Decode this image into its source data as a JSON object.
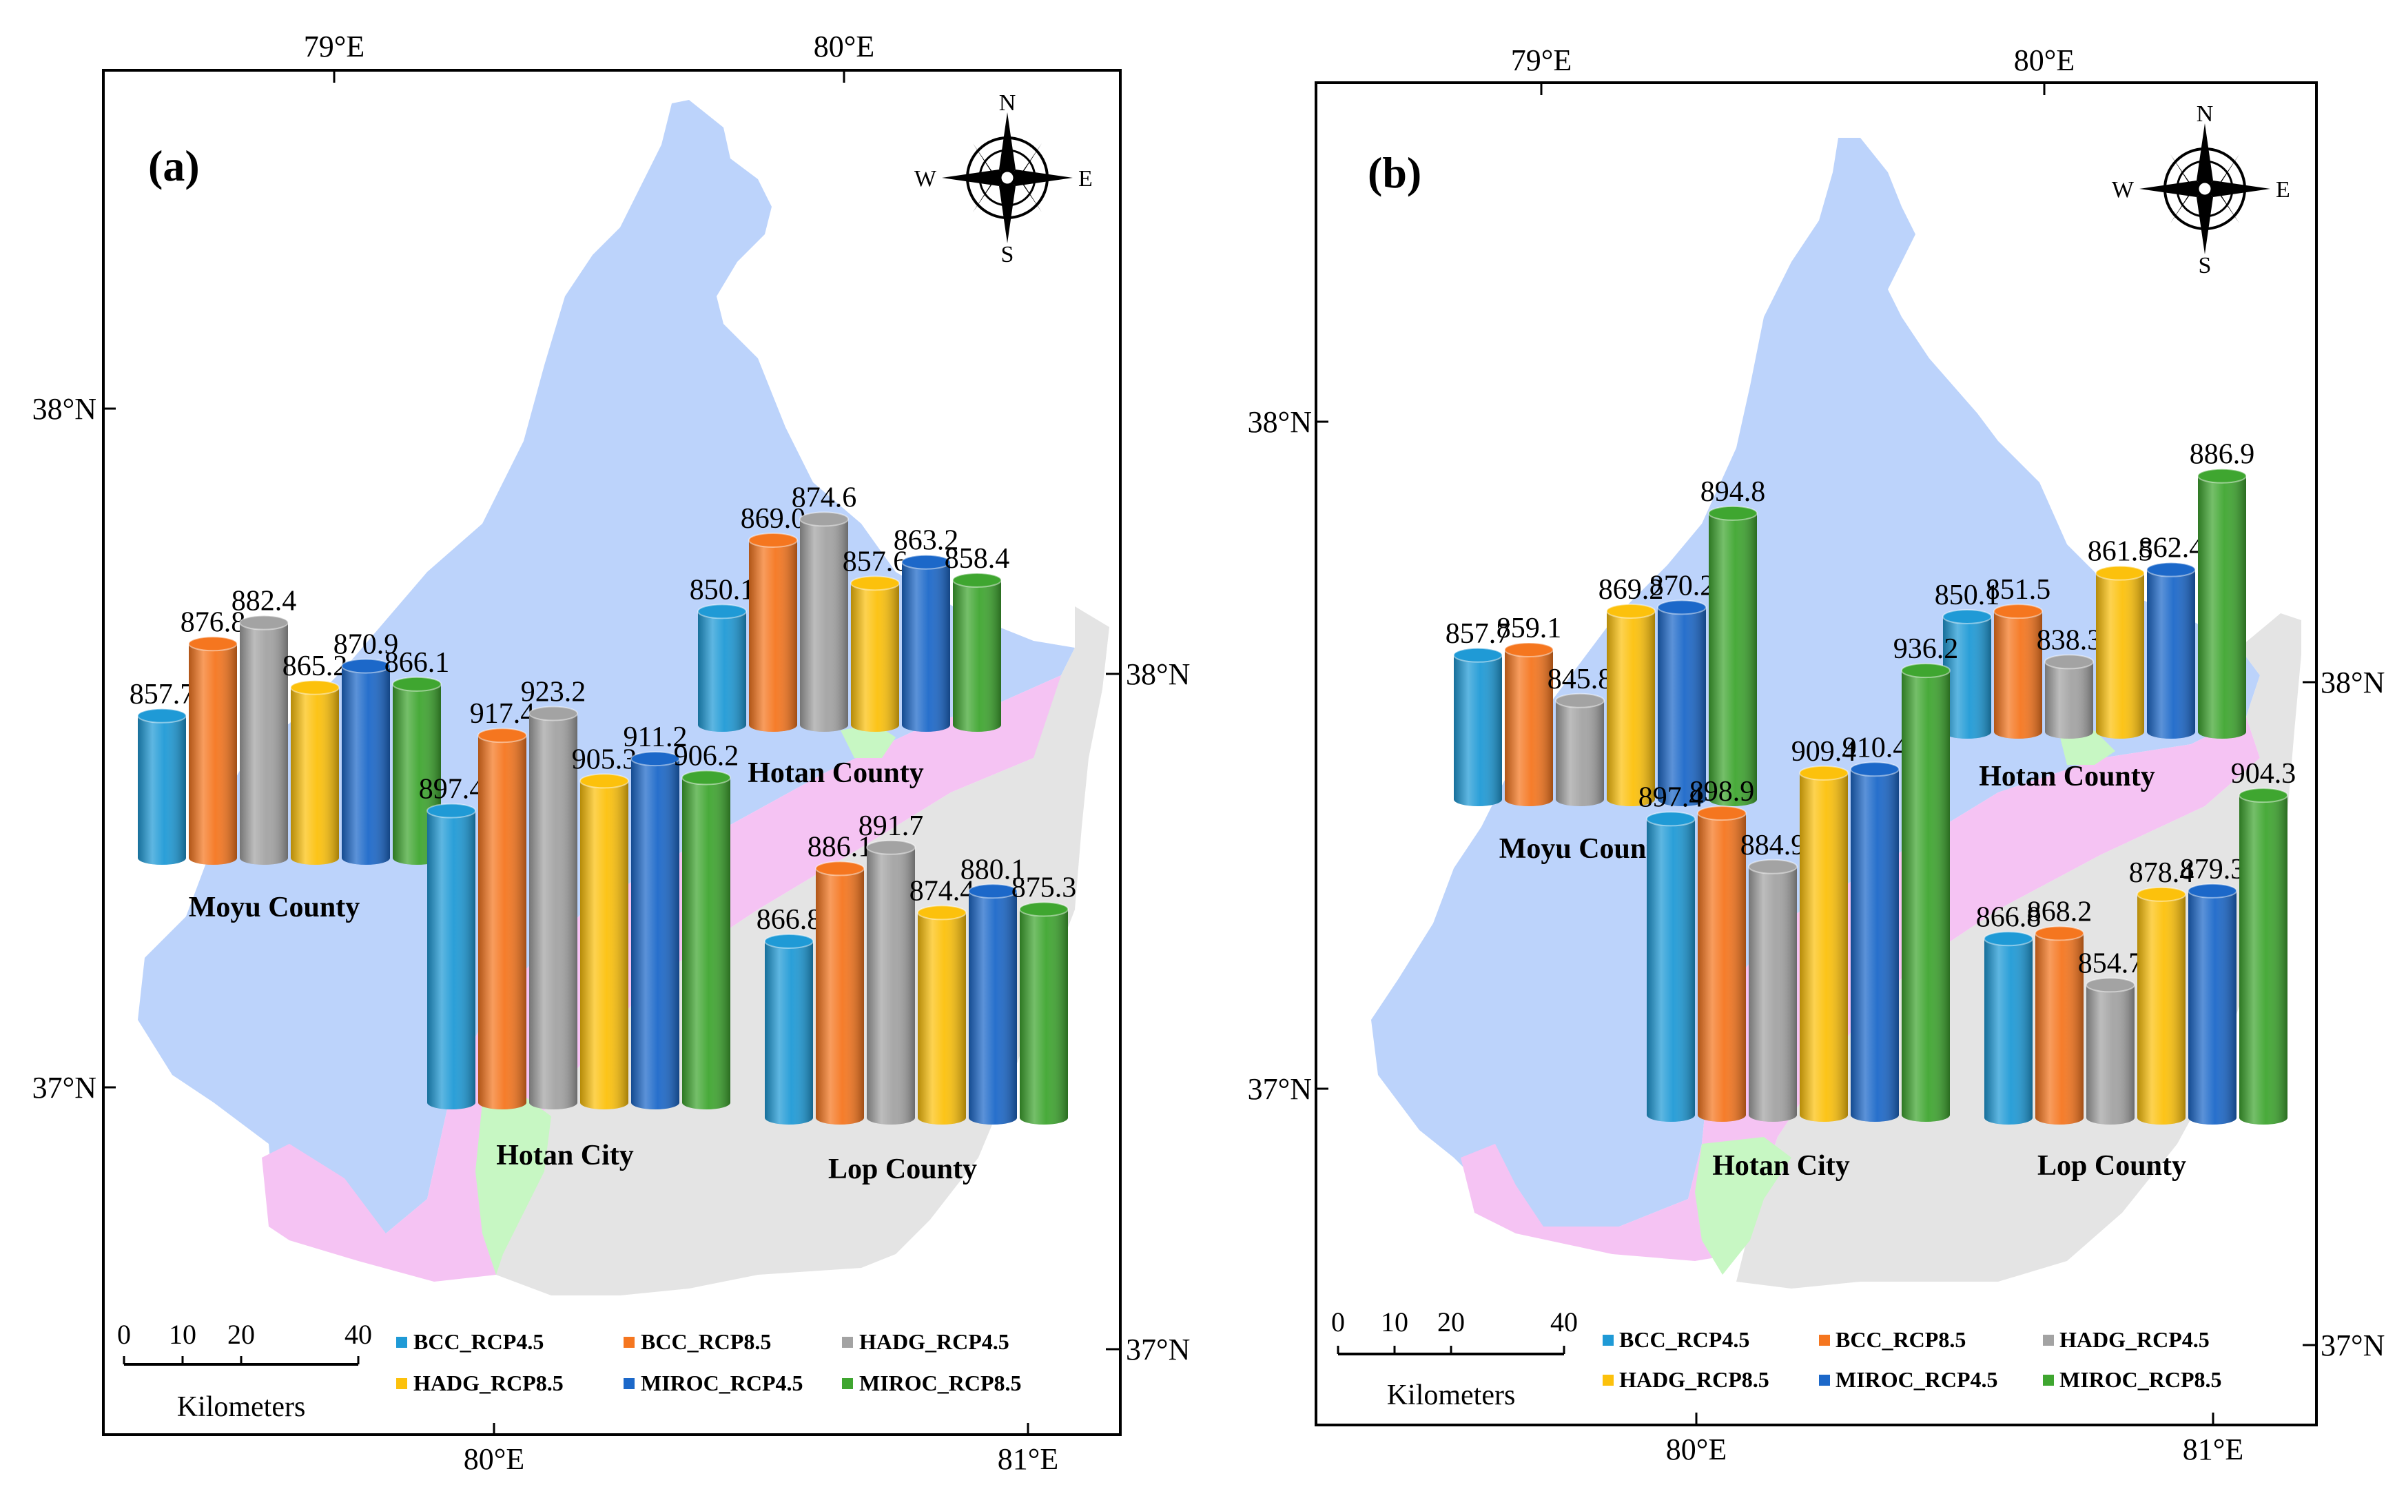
{
  "figure": {
    "series": [
      "BCC_RCP4.5",
      "BCC_RCP8.5",
      "HADG_RCP4.5",
      "HADG_RCP8.5",
      "MIROC_RCP4.5",
      "MIROC_RCP8.5"
    ],
    "colors": {
      "BCC_RCP4.5": "#1f9ad6",
      "BCC_RCP8.5": "#f5761f",
      "HADG_RCP4.5": "#a3a3a3",
      "HADG_RCP8.5": "#fcc10c",
      "MIROC_RCP4.5": "#1c68c9",
      "MIROC_RCP8.5": "#3fa630",
      "region_moyu": "#bcd3fb",
      "region_hotan_county": "#f5c3f3",
      "region_lop": "#e4e4e4",
      "region_hotan_city": "#c7f7c3"
    },
    "scale_ticks": [
      "0",
      "10",
      "20",
      "40"
    ],
    "scale_unit": "Kilometers",
    "compass": {
      "n": "N",
      "s": "S",
      "e": "E",
      "w": "W"
    }
  },
  "chart_data": [
    {
      "type": "bar",
      "title": "(a)",
      "axes": {
        "top_lon": [
          "79°E",
          "80°E"
        ],
        "bottom_lon": [
          "80°E",
          "81°E"
        ],
        "left_lat": [
          "38°N",
          "37°N"
        ],
        "right_lat": [
          "38°N",
          "37°N"
        ]
      },
      "groups": [
        {
          "name": "Moyu County",
          "values": [
            857.7,
            876.8,
            882.4,
            865.2,
            870.9,
            866.1
          ]
        },
        {
          "name": "Hotan County",
          "values": [
            850.1,
            869.0,
            874.6,
            857.6,
            863.2,
            858.4
          ]
        },
        {
          "name": "Hotan City",
          "values": [
            897.4,
            917.4,
            923.2,
            905.3,
            911.2,
            906.2
          ]
        },
        {
          "name": "Lop County",
          "values": [
            866.8,
            886.1,
            891.7,
            874.4,
            880.1,
            875.3
          ]
        }
      ]
    },
    {
      "type": "bar",
      "title": "(b)",
      "axes": {
        "top_lon": [
          "79°E",
          "80°E"
        ],
        "bottom_lon": [
          "80°E",
          "81°E"
        ],
        "left_lat": [
          "38°N",
          "37°N"
        ],
        "right_lat": [
          "38°N",
          "37°N"
        ]
      },
      "groups": [
        {
          "name": "Moyu County",
          "values": [
            857.7,
            859.1,
            845.8,
            869.2,
            870.2,
            894.8
          ]
        },
        {
          "name": "Hotan County",
          "values": [
            850.1,
            851.5,
            838.3,
            861.5,
            862.4,
            886.9
          ]
        },
        {
          "name": "Hotan City",
          "values": [
            897.4,
            898.9,
            884.9,
            909.4,
            910.4,
            936.2
          ]
        },
        {
          "name": "Lop County",
          "values": [
            866.8,
            868.2,
            854.7,
            878.4,
            879.3,
            904.3
          ]
        }
      ]
    }
  ]
}
